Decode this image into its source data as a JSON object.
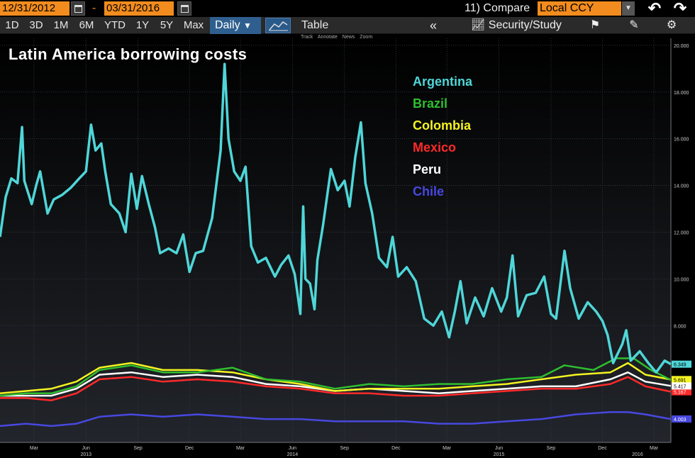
{
  "header": {
    "start_date": "12/31/2012",
    "end_date": "03/31/2016",
    "dash": "-",
    "compare_label": "11) Compare",
    "currency_value": "Local CCY",
    "periods": [
      "1D",
      "3D",
      "1M",
      "6M",
      "YTD",
      "1Y",
      "5Y",
      "Max"
    ],
    "frequency": "Daily",
    "table_label": "Table",
    "security_study_label": "Security/Study",
    "mini_tools": [
      "Track",
      "Annotate",
      "News",
      "Zoom"
    ]
  },
  "colors": {
    "Argentina": "#4fd6d8",
    "Brazil": "#2fbf2f",
    "Colombia": "#f4f422",
    "Mexico": "#ff2a2a",
    "Peru": "#ffffff",
    "Chile": "#4848e0",
    "accent": "#f28c1e"
  },
  "chart_data": {
    "type": "line",
    "title": "Latin America borrowing costs",
    "ylim": [
      3.0,
      20.3
    ],
    "y_ticks": [
      "20.000",
      "18.000",
      "16.000",
      "14.000",
      "12.000",
      "10.000",
      "8.000"
    ],
    "y_tick_values": [
      20,
      18,
      16,
      14,
      12,
      10,
      8
    ],
    "x_range": [
      "2012-12-31",
      "2016-03-31"
    ],
    "x_month_ticks": [
      {
        "date": "2013-03-01",
        "label": "Mar"
      },
      {
        "date": "2013-06-01",
        "label": "Jun"
      },
      {
        "date": "2013-09-01",
        "label": "Sep"
      },
      {
        "date": "2013-12-01",
        "label": "Dec"
      },
      {
        "date": "2014-03-01",
        "label": "Mar"
      },
      {
        "date": "2014-06-01",
        "label": "Jun"
      },
      {
        "date": "2014-09-01",
        "label": "Sep"
      },
      {
        "date": "2014-12-01",
        "label": "Dec"
      },
      {
        "date": "2015-03-01",
        "label": "Mar"
      },
      {
        "date": "2015-06-01",
        "label": "Jun"
      },
      {
        "date": "2015-09-01",
        "label": "Sep"
      },
      {
        "date": "2015-12-01",
        "label": "Dec"
      },
      {
        "date": "2016-03-01",
        "label": "Mar"
      }
    ],
    "x_year_ticks": [
      {
        "date": "2013-06-01",
        "label": "2013"
      },
      {
        "date": "2014-06-01",
        "label": "2014"
      },
      {
        "date": "2015-06-01",
        "label": "2015"
      },
      {
        "date": "2016-02-01",
        "label": "2016"
      }
    ],
    "grid": true,
    "legend_position": "top-center",
    "series": [
      {
        "name": "Argentina",
        "last": "6.349",
        "points": [
          [
            "2012-12-31",
            11.8
          ],
          [
            "2013-01-10",
            13.5
          ],
          [
            "2013-01-20",
            14.3
          ],
          [
            "2013-01-31",
            14.1
          ],
          [
            "2013-02-08",
            16.5
          ],
          [
            "2013-02-12",
            14.2
          ],
          [
            "2013-02-25",
            13.2
          ],
          [
            "2013-03-05",
            14.0
          ],
          [
            "2013-03-12",
            14.6
          ],
          [
            "2013-03-25",
            12.8
          ],
          [
            "2013-04-05",
            13.4
          ],
          [
            "2013-04-20",
            13.6
          ],
          [
            "2013-05-05",
            13.9
          ],
          [
            "2013-05-20",
            14.3
          ],
          [
            "2013-06-01",
            14.6
          ],
          [
            "2013-06-10",
            16.6
          ],
          [
            "2013-06-18",
            15.5
          ],
          [
            "2013-06-28",
            15.8
          ],
          [
            "2013-07-05",
            14.6
          ],
          [
            "2013-07-15",
            13.2
          ],
          [
            "2013-07-30",
            12.8
          ],
          [
            "2013-08-10",
            12.0
          ],
          [
            "2013-08-20",
            14.5
          ],
          [
            "2013-08-30",
            13.0
          ],
          [
            "2013-09-08",
            14.4
          ],
          [
            "2013-09-20",
            13.2
          ],
          [
            "2013-10-01",
            12.2
          ],
          [
            "2013-10-10",
            11.1
          ],
          [
            "2013-10-25",
            11.3
          ],
          [
            "2013-11-08",
            11.1
          ],
          [
            "2013-11-20",
            11.9
          ],
          [
            "2013-12-01",
            10.3
          ],
          [
            "2013-12-12",
            11.1
          ],
          [
            "2013-12-25",
            11.2
          ],
          [
            "2014-01-10",
            12.6
          ],
          [
            "2014-01-25",
            15.5
          ],
          [
            "2014-02-01",
            19.2
          ],
          [
            "2014-02-08",
            16.0
          ],
          [
            "2014-02-18",
            14.6
          ],
          [
            "2014-03-01",
            14.2
          ],
          [
            "2014-03-10",
            14.8
          ],
          [
            "2014-03-20",
            11.4
          ],
          [
            "2014-04-01",
            10.7
          ],
          [
            "2014-04-15",
            10.9
          ],
          [
            "2014-05-01",
            10.1
          ],
          [
            "2014-05-12",
            10.6
          ],
          [
            "2014-05-25",
            11.0
          ],
          [
            "2014-06-05",
            10.2
          ],
          [
            "2014-06-15",
            8.5
          ],
          [
            "2014-06-20",
            13.1
          ],
          [
            "2014-06-24",
            10.0
          ],
          [
            "2014-07-02",
            9.8
          ],
          [
            "2014-07-10",
            8.7
          ],
          [
            "2014-07-15",
            10.8
          ],
          [
            "2014-07-25",
            12.3
          ],
          [
            "2014-08-08",
            14.7
          ],
          [
            "2014-08-20",
            13.8
          ],
          [
            "2014-09-01",
            14.2
          ],
          [
            "2014-09-10",
            13.1
          ],
          [
            "2014-09-20",
            15.2
          ],
          [
            "2014-09-30",
            16.7
          ],
          [
            "2014-10-08",
            14.1
          ],
          [
            "2014-10-20",
            12.8
          ],
          [
            "2014-11-01",
            10.9
          ],
          [
            "2014-11-15",
            10.5
          ],
          [
            "2014-11-25",
            11.8
          ],
          [
            "2014-12-05",
            10.1
          ],
          [
            "2014-12-20",
            10.5
          ],
          [
            "2015-01-05",
            9.9
          ],
          [
            "2015-01-20",
            8.3
          ],
          [
            "2015-02-05",
            8.0
          ],
          [
            "2015-02-20",
            8.6
          ],
          [
            "2015-03-05",
            7.5
          ],
          [
            "2015-03-15",
            8.6
          ],
          [
            "2015-03-25",
            9.9
          ],
          [
            "2015-04-05",
            8.1
          ],
          [
            "2015-04-20",
            9.2
          ],
          [
            "2015-05-05",
            8.4
          ],
          [
            "2015-05-20",
            9.6
          ],
          [
            "2015-06-05",
            8.6
          ],
          [
            "2015-06-15",
            9.2
          ],
          [
            "2015-06-25",
            11.0
          ],
          [
            "2015-07-05",
            8.4
          ],
          [
            "2015-07-20",
            9.3
          ],
          [
            "2015-08-05",
            9.4
          ],
          [
            "2015-08-20",
            10.1
          ],
          [
            "2015-09-01",
            8.5
          ],
          [
            "2015-09-10",
            8.3
          ],
          [
            "2015-09-25",
            11.2
          ],
          [
            "2015-10-05",
            9.6
          ],
          [
            "2015-10-20",
            8.3
          ],
          [
            "2015-11-05",
            9.0
          ],
          [
            "2015-11-20",
            8.6
          ],
          [
            "2015-12-01",
            8.2
          ],
          [
            "2015-12-10",
            7.6
          ],
          [
            "2015-12-20",
            6.4
          ],
          [
            "2016-01-05",
            7.2
          ],
          [
            "2016-01-12",
            7.8
          ],
          [
            "2016-01-20",
            6.5
          ],
          [
            "2016-02-05",
            6.9
          ],
          [
            "2016-02-20",
            6.4
          ],
          [
            "2016-03-05",
            6.0
          ],
          [
            "2016-03-20",
            6.5
          ],
          [
            "2016-03-31",
            6.35
          ]
        ]
      },
      {
        "name": "Brazil",
        "last": "5.666",
        "points": [
          [
            "2012-12-31",
            5.0
          ],
          [
            "2013-02-15",
            5.1
          ],
          [
            "2013-04-01",
            5.1
          ],
          [
            "2013-05-15",
            5.4
          ],
          [
            "2013-06-25",
            6.1
          ],
          [
            "2013-08-20",
            6.3
          ],
          [
            "2013-10-15",
            6.0
          ],
          [
            "2013-12-15",
            6.0
          ],
          [
            "2014-02-15",
            6.2
          ],
          [
            "2014-04-15",
            5.7
          ],
          [
            "2014-06-15",
            5.6
          ],
          [
            "2014-08-15",
            5.3
          ],
          [
            "2014-10-15",
            5.5
          ],
          [
            "2014-12-15",
            5.4
          ],
          [
            "2015-02-15",
            5.5
          ],
          [
            "2015-04-15",
            5.5
          ],
          [
            "2015-06-15",
            5.7
          ],
          [
            "2015-08-15",
            5.8
          ],
          [
            "2015-09-25",
            6.3
          ],
          [
            "2015-11-15",
            6.1
          ],
          [
            "2015-12-25",
            6.6
          ],
          [
            "2016-01-25",
            6.6
          ],
          [
            "2016-02-25",
            6.1
          ],
          [
            "2016-03-31",
            5.67
          ]
        ]
      },
      {
        "name": "Colombia",
        "last": "5.691",
        "points": [
          [
            "2012-12-31",
            5.1
          ],
          [
            "2013-02-15",
            5.2
          ],
          [
            "2013-04-01",
            5.3
          ],
          [
            "2013-05-15",
            5.6
          ],
          [
            "2013-06-25",
            6.2
          ],
          [
            "2013-08-20",
            6.4
          ],
          [
            "2013-10-15",
            6.1
          ],
          [
            "2013-12-15",
            6.1
          ],
          [
            "2014-02-15",
            6.0
          ],
          [
            "2014-04-15",
            5.7
          ],
          [
            "2014-06-15",
            5.5
          ],
          [
            "2014-08-15",
            5.2
          ],
          [
            "2014-10-15",
            5.3
          ],
          [
            "2014-12-15",
            5.3
          ],
          [
            "2015-02-15",
            5.3
          ],
          [
            "2015-04-15",
            5.4
          ],
          [
            "2015-06-15",
            5.5
          ],
          [
            "2015-08-15",
            5.7
          ],
          [
            "2015-10-15",
            5.9
          ],
          [
            "2015-12-15",
            6.0
          ],
          [
            "2016-01-15",
            6.4
          ],
          [
            "2016-02-15",
            5.9
          ],
          [
            "2016-03-31",
            5.69
          ]
        ]
      },
      {
        "name": "Mexico",
        "last": "5.167",
        "points": [
          [
            "2012-12-31",
            4.9
          ],
          [
            "2013-02-15",
            4.9
          ],
          [
            "2013-04-01",
            4.8
          ],
          [
            "2013-05-15",
            5.1
          ],
          [
            "2013-06-25",
            5.7
          ],
          [
            "2013-08-20",
            5.8
          ],
          [
            "2013-10-15",
            5.6
          ],
          [
            "2013-12-15",
            5.7
          ],
          [
            "2014-02-15",
            5.6
          ],
          [
            "2014-04-15",
            5.4
          ],
          [
            "2014-06-15",
            5.3
          ],
          [
            "2014-08-15",
            5.1
          ],
          [
            "2014-10-15",
            5.1
          ],
          [
            "2014-12-15",
            5.0
          ],
          [
            "2015-02-15",
            5.0
          ],
          [
            "2015-04-15",
            5.1
          ],
          [
            "2015-06-15",
            5.2
          ],
          [
            "2015-08-15",
            5.3
          ],
          [
            "2015-10-15",
            5.3
          ],
          [
            "2015-12-15",
            5.5
          ],
          [
            "2016-01-15",
            5.8
          ],
          [
            "2016-02-15",
            5.4
          ],
          [
            "2016-03-31",
            5.17
          ]
        ]
      },
      {
        "name": "Peru",
        "last": "5.417",
        "points": [
          [
            "2012-12-31",
            5.0
          ],
          [
            "2013-02-15",
            5.0
          ],
          [
            "2013-04-01",
            5.0
          ],
          [
            "2013-05-15",
            5.3
          ],
          [
            "2013-06-25",
            5.9
          ],
          [
            "2013-08-20",
            6.0
          ],
          [
            "2013-10-15",
            5.8
          ],
          [
            "2013-12-15",
            5.9
          ],
          [
            "2014-02-15",
            5.8
          ],
          [
            "2014-04-15",
            5.5
          ],
          [
            "2014-06-15",
            5.4
          ],
          [
            "2014-08-15",
            5.2
          ],
          [
            "2014-10-15",
            5.3
          ],
          [
            "2014-12-15",
            5.2
          ],
          [
            "2015-02-15",
            5.1
          ],
          [
            "2015-04-15",
            5.2
          ],
          [
            "2015-06-15",
            5.3
          ],
          [
            "2015-08-15",
            5.4
          ],
          [
            "2015-10-15",
            5.4
          ],
          [
            "2015-12-15",
            5.7
          ],
          [
            "2016-01-15",
            6.0
          ],
          [
            "2016-02-15",
            5.6
          ],
          [
            "2016-03-31",
            5.42
          ]
        ]
      },
      {
        "name": "Chile",
        "last": "4.003",
        "points": [
          [
            "2012-12-31",
            3.7
          ],
          [
            "2013-02-15",
            3.8
          ],
          [
            "2013-04-01",
            3.7
          ],
          [
            "2013-05-15",
            3.8
          ],
          [
            "2013-06-25",
            4.1
          ],
          [
            "2013-08-20",
            4.2
          ],
          [
            "2013-10-15",
            4.1
          ],
          [
            "2013-12-15",
            4.2
          ],
          [
            "2014-02-15",
            4.1
          ],
          [
            "2014-04-15",
            4.0
          ],
          [
            "2014-06-15",
            4.0
          ],
          [
            "2014-08-15",
            3.9
          ],
          [
            "2014-10-15",
            3.9
          ],
          [
            "2014-12-15",
            3.9
          ],
          [
            "2015-02-15",
            3.8
          ],
          [
            "2015-04-15",
            3.8
          ],
          [
            "2015-06-15",
            3.9
          ],
          [
            "2015-08-15",
            4.0
          ],
          [
            "2015-10-15",
            4.2
          ],
          [
            "2015-12-15",
            4.3
          ],
          [
            "2016-01-15",
            4.3
          ],
          [
            "2016-02-15",
            4.2
          ],
          [
            "2016-03-31",
            4.0
          ]
        ]
      }
    ]
  }
}
